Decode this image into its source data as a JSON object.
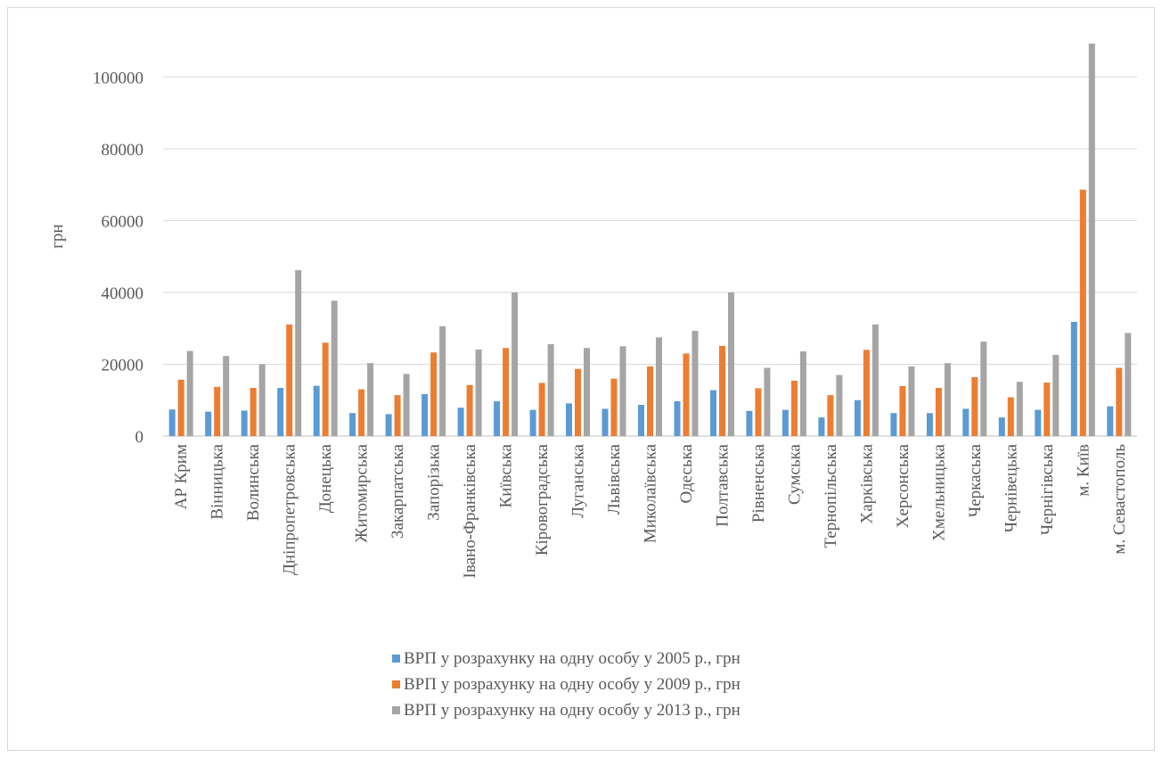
{
  "chart_data": {
    "type": "bar",
    "title": "",
    "xlabel": "",
    "ylabel": "грн",
    "ylim": [
      0,
      110000
    ],
    "yticks": [
      0,
      20000,
      40000,
      60000,
      80000,
      100000
    ],
    "grid": true,
    "legend_position": "bottom",
    "categories": [
      "АР Крим",
      "Вінницька",
      "Волинська",
      "Дніпропетровська",
      "Донецька",
      "Житомирська",
      "Закарпатська",
      "Запорізька",
      "Івано-Франківська",
      "Київська",
      "Кіровоградська",
      "Луганська",
      "Львівська",
      "Миколаївська",
      "Одеська",
      "Полтавська",
      "Рівненська",
      "Сумська",
      "Тернопільська",
      "Харківська",
      "Херсонська",
      "Хмельницька",
      "Черкаська",
      "Чернівецька",
      "Чернігівська",
      "м. Київ",
      "м. Севастополь"
    ],
    "series": [
      {
        "name": "ВРП у розрахунку  на одну особу у 2005 р., грн",
        "color": "#5b9bd5",
        "values": [
          7400,
          6800,
          7100,
          13400,
          14000,
          6400,
          6100,
          11700,
          7900,
          9700,
          7300,
          9100,
          7600,
          8700,
          9700,
          12800,
          7000,
          7300,
          5200,
          10000,
          6400,
          6400,
          7600,
          5200,
          7300,
          31800,
          8300
        ]
      },
      {
        "name": "ВРП у розрахунку  на одну особу у 2009 р., грн",
        "color": "#ed7d31",
        "values": [
          15700,
          13700,
          13400,
          31100,
          26000,
          13000,
          11400,
          23300,
          14200,
          24500,
          14800,
          18700,
          16000,
          19400,
          23000,
          25100,
          13300,
          15400,
          11400,
          24000,
          13900,
          13400,
          16400,
          10800,
          14900,
          68600,
          19000
        ]
      },
      {
        "name": "ВРП у розрахунку  на одну особу у 2013 р., грн",
        "color": "#a5a5a5",
        "values": [
          23700,
          22300,
          20000,
          46200,
          37700,
          20300,
          17300,
          30600,
          24100,
          40000,
          25600,
          24500,
          25000,
          27500,
          29300,
          40000,
          19000,
          23600,
          17000,
          31100,
          19400,
          20300,
          26300,
          15100,
          22600,
          109300,
          28700
        ]
      }
    ]
  }
}
